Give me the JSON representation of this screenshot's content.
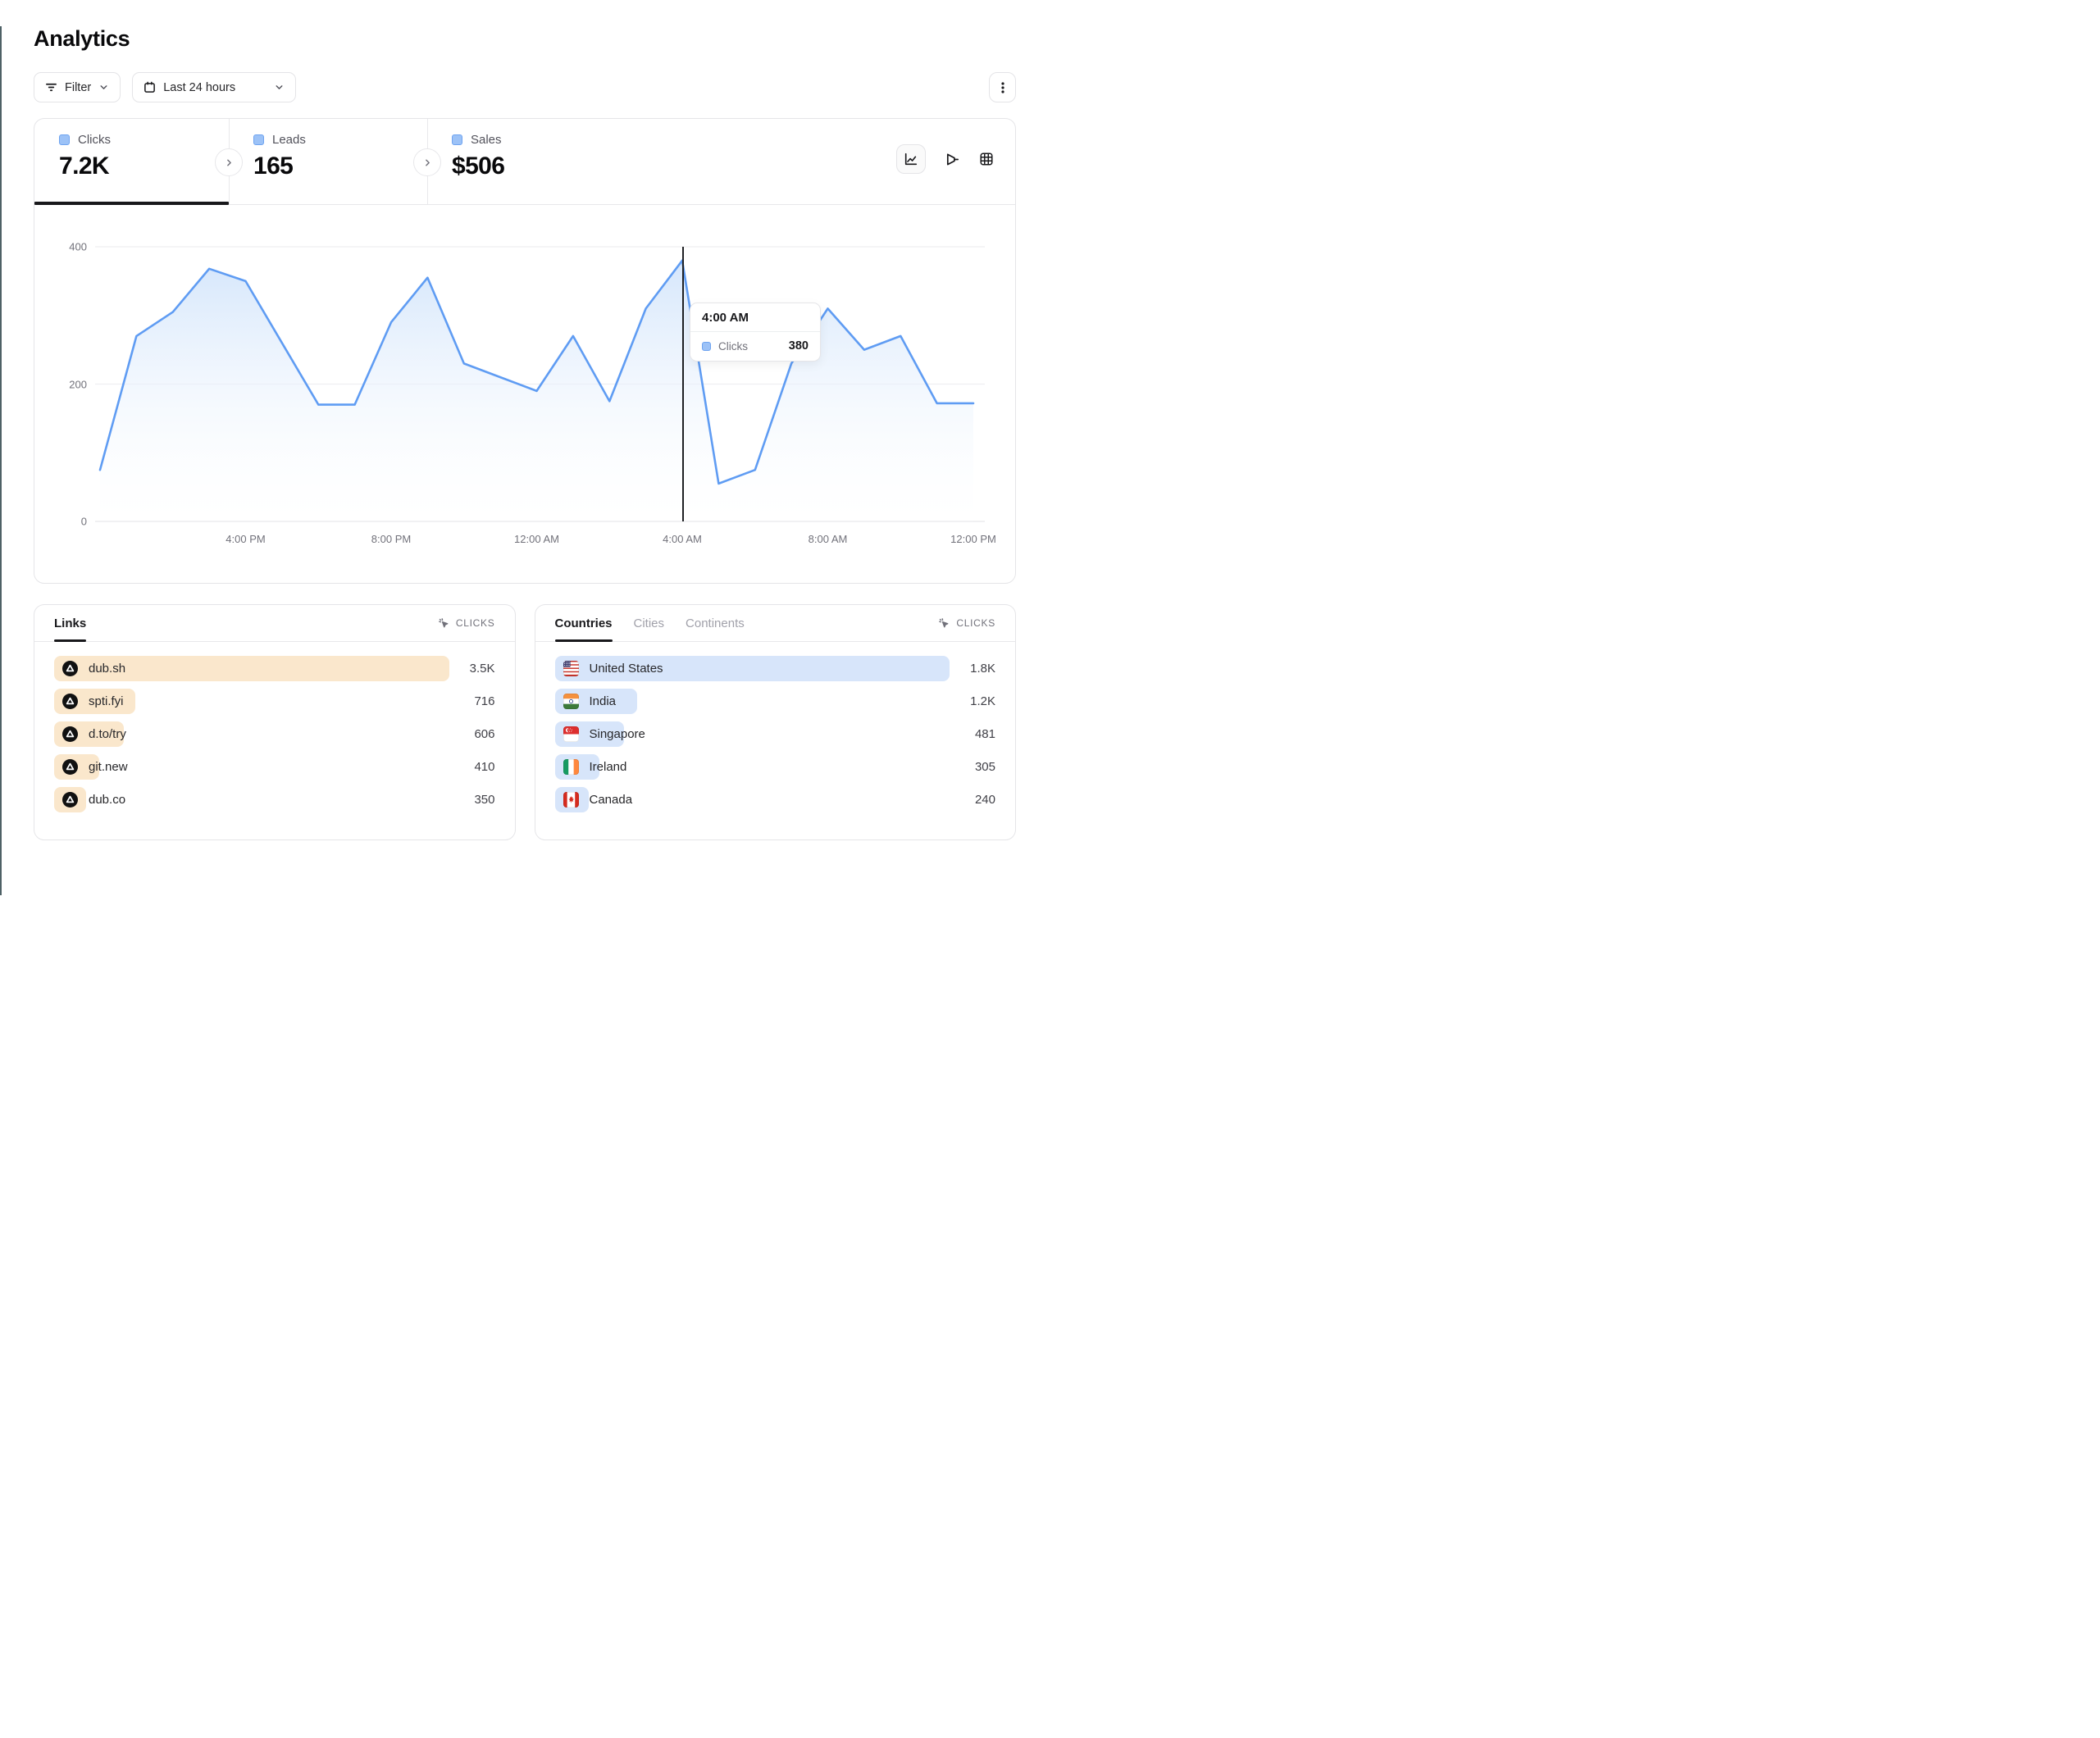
{
  "page": {
    "title": "Analytics"
  },
  "toolbar": {
    "filter_label": "Filter",
    "date_range_label": "Last 24 hours"
  },
  "stats": [
    {
      "label": "Clicks",
      "value": "7.2K",
      "active": true
    },
    {
      "label": "Leads",
      "value": "165",
      "active": false
    },
    {
      "label": "Sales",
      "value": "$506",
      "active": false
    }
  ],
  "view_toggles": [
    {
      "name": "line-chart",
      "active": true
    },
    {
      "name": "funnel-chart",
      "active": false
    },
    {
      "name": "table-view",
      "active": false
    }
  ],
  "chart_data": {
    "type": "area",
    "series_name": "Clicks",
    "hours": [
      "12 PM",
      "1 PM",
      "2 PM",
      "3 PM",
      "4 PM",
      "5 PM",
      "6 PM",
      "7 PM",
      "8 PM",
      "9 PM",
      "10 PM",
      "11 PM",
      "12 AM",
      "1 AM",
      "2 AM",
      "3 AM",
      "4 AM",
      "5 AM",
      "6 AM",
      "7 AM",
      "8 AM",
      "9 AM",
      "10 AM",
      "11 AM",
      "12 PM"
    ],
    "values": [
      75,
      270,
      305,
      368,
      350,
      260,
      170,
      170,
      290,
      355,
      230,
      210,
      190,
      270,
      175,
      310,
      380,
      55,
      75,
      230,
      310,
      250,
      270,
      172,
      172
    ],
    "yticks": [
      0,
      200,
      400
    ],
    "ylim": [
      0,
      400
    ],
    "xticks": [
      {
        "hour_index": 4,
        "label": "4:00 PM"
      },
      {
        "hour_index": 8,
        "label": "8:00 PM"
      },
      {
        "hour_index": 12,
        "label": "12:00 AM"
      },
      {
        "hour_index": 16,
        "label": "4:00 AM"
      },
      {
        "hour_index": 20,
        "label": "8:00 AM"
      },
      {
        "hour_index": 24,
        "label": "12:00 PM"
      }
    ],
    "grid": "horizontal",
    "line_color": "#5f9cf3",
    "fill_top_color": "#d3e5fb",
    "tooltip": {
      "time": "4:00 AM",
      "label": "Clicks",
      "value": "380",
      "hour_index": 16
    }
  },
  "links_panel": {
    "tab_label": "Links",
    "metric_label": "CLICKS",
    "bar_color": "#fae7cc",
    "rows": [
      {
        "label": "dub.sh",
        "value": "3.5K",
        "pct": 100,
        "icon": "dub-logo"
      },
      {
        "label": "spti.fyi",
        "value": "716",
        "pct": 20.6,
        "icon": "dub-logo"
      },
      {
        "label": "d.to/try",
        "value": "606",
        "pct": 17.6,
        "icon": "dub-logo"
      },
      {
        "label": "git.new",
        "value": "410",
        "pct": 11.4,
        "icon": "dub-logo"
      },
      {
        "label": "dub.co",
        "value": "350",
        "pct": 8.1,
        "icon": "dub-logo"
      }
    ]
  },
  "countries_panel": {
    "tabs": [
      "Countries",
      "Cities",
      "Continents"
    ],
    "active_tab": "Countries",
    "metric_label": "CLICKS",
    "bar_color": "#d7e5fa",
    "rows": [
      {
        "label": "United States",
        "value": "1.8K",
        "pct": 100,
        "icon": "flag-us"
      },
      {
        "label": "India",
        "value": "1.2K",
        "pct": 20.8,
        "icon": "flag-in"
      },
      {
        "label": "Singapore",
        "value": "481",
        "pct": 17.5,
        "icon": "flag-sg"
      },
      {
        "label": "Ireland",
        "value": "305",
        "pct": 11.4,
        "icon": "flag-ie"
      },
      {
        "label": "Canada",
        "value": "240",
        "pct": 8.7,
        "icon": "flag-ca"
      }
    ]
  }
}
